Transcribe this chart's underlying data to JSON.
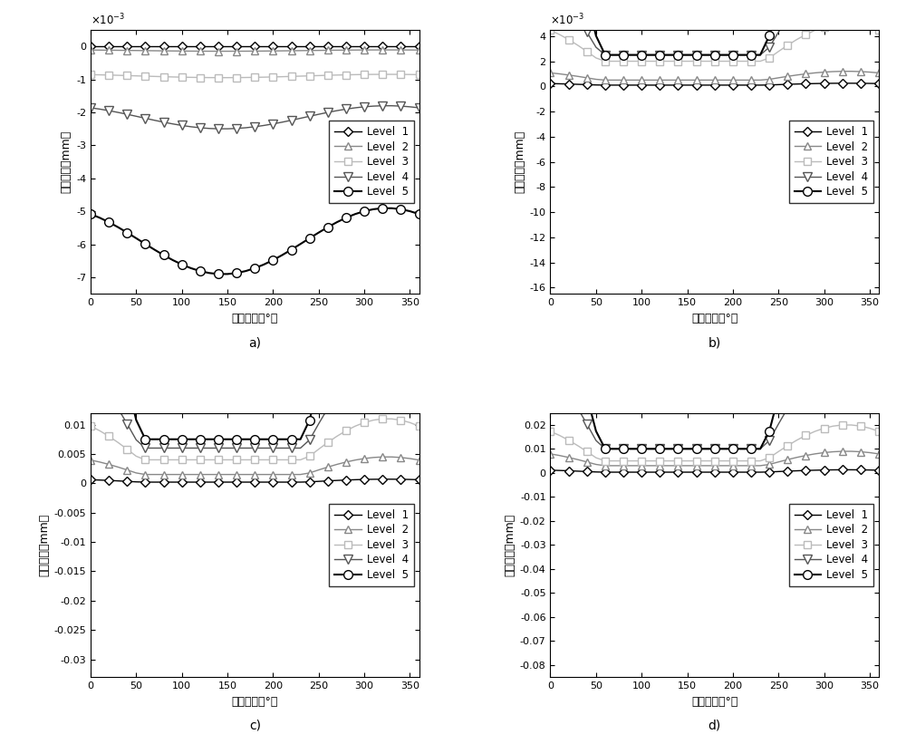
{
  "subplot_labels": [
    "a)",
    "b)",
    "c)",
    "d)"
  ],
  "legend_labels": [
    "Level  1",
    "Level  2",
    "Level  3",
    "Level  4",
    "Level  5"
  ],
  "xlabel": "采样角度（°）",
  "ylabel": "计算误差（mm）",
  "level_colors": [
    "#000000",
    "#888888",
    "#bbbbbb",
    "#555555",
    "#000000"
  ],
  "level_markers": [
    "D",
    "^",
    "s",
    "v",
    "o"
  ],
  "level_ms": [
    5,
    6,
    6,
    7,
    7
  ],
  "level_lw": [
    1.0,
    1.0,
    1.0,
    1.0,
    1.5
  ],
  "markevery": 2,
  "xticks": [
    0,
    50,
    100,
    150,
    200,
    250,
    300,
    350
  ],
  "subplot_configs": [
    {
      "ylim": [
        -0.0075,
        0.0005
      ],
      "yticks": [
        -0.007,
        -0.006,
        -0.005,
        -0.004,
        -0.003,
        -0.002,
        -0.001,
        0.0
      ],
      "yticklabels": [
        "-7",
        "-6",
        "-5",
        "-4",
        "-3",
        "-2",
        "-1",
        "0"
      ],
      "use_scale": true,
      "legend_loc": "center right"
    },
    {
      "ylim": [
        -0.0165,
        0.0045
      ],
      "yticks": [
        -0.016,
        -0.014,
        -0.012,
        -0.01,
        -0.008,
        -0.006,
        -0.004,
        -0.002,
        0.0,
        0.002,
        0.004
      ],
      "yticklabels": [
        "-16",
        "-14",
        "-12",
        "-10",
        "-8",
        "-6",
        "-4",
        "-2",
        "0",
        "2",
        "4"
      ],
      "use_scale": true,
      "legend_loc": "center right"
    },
    {
      "ylim": [
        -0.033,
        0.012
      ],
      "yticks": [
        -0.03,
        -0.025,
        -0.02,
        -0.015,
        -0.01,
        -0.005,
        0.0,
        0.005,
        0.01
      ],
      "yticklabels": [
        "-0.03",
        "-0.025",
        "-0.02",
        "-0.015",
        "-0.01",
        "-0.005",
        "0",
        "0.005",
        "0.01"
      ],
      "use_scale": false,
      "legend_loc": "center right"
    },
    {
      "ylim": [
        -0.085,
        0.025
      ],
      "yticks": [
        -0.08,
        -0.07,
        -0.06,
        -0.05,
        -0.04,
        -0.03,
        -0.02,
        -0.01,
        0.0,
        0.01,
        0.02
      ],
      "yticklabels": [
        "-0.08",
        "-0.07",
        "-0.06",
        "-0.05",
        "-0.04",
        "-0.03",
        "-0.02",
        "-0.01",
        "0",
        "0.01",
        "0.02"
      ],
      "use_scale": false,
      "legend_loc": "center right"
    }
  ]
}
